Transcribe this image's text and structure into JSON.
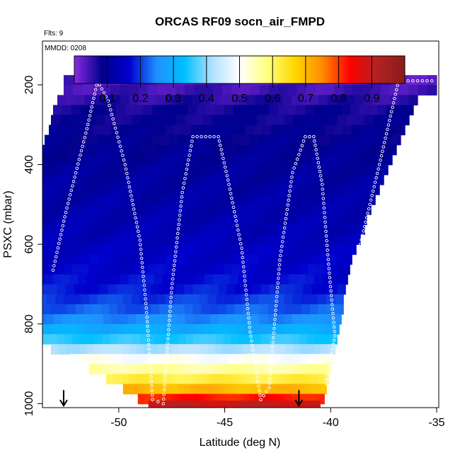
{
  "chart_data": {
    "type": "heatmap",
    "title": "ORCAS RF09 socn_air_FMPD",
    "flts_label": "Flts: 9",
    "mmdd_label": "MMDD: 0208",
    "xlabel": "Latitude (deg N)",
    "ylabel": "PSXC (mbar)",
    "xlim": [
      -53.6,
      -34.9
    ],
    "ylim": [
      1010,
      90
    ],
    "x_ticks": [
      -50,
      -45,
      -40,
      -35
    ],
    "x_tick_labels": [
      "-50",
      "-45",
      "-40",
      "-35"
    ],
    "y_ticks": [
      200,
      400,
      600,
      800,
      1000
    ],
    "y_tick_labels": [
      "200",
      "400",
      "600",
      "800",
      "1000"
    ],
    "colorbar": {
      "range": [
        0,
        1
      ],
      "ticks": [
        0.1,
        0.2,
        0.3,
        0.4,
        0.5,
        0.6,
        0.7,
        0.8,
        0.9
      ],
      "tick_labels": [
        "0.1",
        "0.2",
        "0.3",
        "0.4",
        "0.5",
        "0.6",
        "0.7",
        "0.8",
        "0.9"
      ],
      "colors": [
        "#8a2be2",
        "#00008b",
        "#0000cd",
        "#1e90ff",
        "#00bfff",
        "#b0e0ff",
        "#ffffff",
        "#ffff80",
        "#ffd700",
        "#ff8c00",
        "#ff0000",
        "#b22222",
        "#8b1a1a"
      ]
    },
    "bands": [
      {
        "p": 188,
        "lat_min": -52.6,
        "lat_max": -35.0,
        "v": 0.035
      },
      {
        "p": 213,
        "lat_min": -52.6,
        "lat_max": -35.0,
        "v": 0.045
      },
      {
        "p": 238,
        "lat_min": -52.9,
        "lat_max": -35.9,
        "v": 0.06
      },
      {
        "p": 263,
        "lat_min": -53.1,
        "lat_max": -36.1,
        "v": 0.075
      },
      {
        "p": 288,
        "lat_min": -53.2,
        "lat_max": -36.3,
        "v": 0.08
      },
      {
        "p": 313,
        "lat_min": -53.3,
        "lat_max": -36.5,
        "v": 0.085
      },
      {
        "p": 338,
        "lat_min": -53.5,
        "lat_max": -36.7,
        "v": 0.09
      },
      {
        "p": 363,
        "lat_min": -53.6,
        "lat_max": -36.9,
        "v": 0.095
      },
      {
        "p": 388,
        "lat_min": -53.7,
        "lat_max": -37.1,
        "v": 0.1
      },
      {
        "p": 413,
        "lat_min": -53.9,
        "lat_max": -37.3,
        "v": 0.105
      },
      {
        "p": 438,
        "lat_min": -54.0,
        "lat_max": -37.5,
        "v": 0.11
      },
      {
        "p": 463,
        "lat_min": -54.1,
        "lat_max": -37.7,
        "v": 0.115
      },
      {
        "p": 488,
        "lat_min": -54.2,
        "lat_max": -37.9,
        "v": 0.12
      },
      {
        "p": 513,
        "lat_min": -54.3,
        "lat_max": -38.1,
        "v": 0.125
      },
      {
        "p": 538,
        "lat_min": -54.4,
        "lat_max": -38.3,
        "v": 0.13
      },
      {
        "p": 563,
        "lat_min": -54.6,
        "lat_max": -38.4,
        "v": 0.135
      },
      {
        "p": 588,
        "lat_min": -54.7,
        "lat_max": -38.6,
        "v": 0.14
      },
      {
        "p": 613,
        "lat_min": -54.8,
        "lat_max": -38.8,
        "v": 0.15
      },
      {
        "p": 638,
        "lat_min": -54.9,
        "lat_max": -39.0,
        "v": 0.155
      },
      {
        "p": 663,
        "lat_min": -55.0,
        "lat_max": -39.1,
        "v": 0.16
      },
      {
        "p": 688,
        "lat_min": -55.1,
        "lat_max": -39.2,
        "v": 0.17
      },
      {
        "p": 713,
        "lat_min": -55.3,
        "lat_max": -39.3,
        "v": 0.18
      },
      {
        "p": 738,
        "lat_min": -55.4,
        "lat_max": -39.4,
        "v": 0.2
      },
      {
        "p": 763,
        "lat_min": -55.2,
        "lat_max": -39.4,
        "v": 0.22
      },
      {
        "p": 788,
        "lat_min": -55.0,
        "lat_max": -39.5,
        "v": 0.25
      },
      {
        "p": 813,
        "lat_min": -54.6,
        "lat_max": -39.6,
        "v": 0.3
      },
      {
        "p": 838,
        "lat_min": -54.0,
        "lat_max": -39.7,
        "v": 0.35
      },
      {
        "p": 863,
        "lat_min": -53.2,
        "lat_max": -39.8,
        "v": 0.42
      },
      {
        "p": 888,
        "lat_min": -52.3,
        "lat_max": -39.9,
        "v": 0.5
      },
      {
        "p": 913,
        "lat_min": -51.4,
        "lat_max": -40.0,
        "v": 0.56
      },
      {
        "p": 938,
        "lat_min": -50.6,
        "lat_max": -40.1,
        "v": 0.62
      },
      {
        "p": 963,
        "lat_min": -49.8,
        "lat_max": -40.2,
        "v": 0.7
      },
      {
        "p": 988,
        "lat_min": -49.1,
        "lat_max": -40.3,
        "v": 0.82
      },
      {
        "p": 1005,
        "lat_min": -48.6,
        "lat_max": -40.5,
        "v": 0.9
      }
    ],
    "flight_track": [
      [
        -53.1,
        665
      ],
      [
        -52.5,
        520
      ],
      [
        -51.5,
        310
      ],
      [
        -51.0,
        190
      ],
      [
        -50.5,
        240
      ],
      [
        -49.7,
        400
      ],
      [
        -49.0,
        590
      ],
      [
        -48.7,
        760
      ],
      [
        -48.4,
        990
      ],
      [
        -47.9,
        1000
      ],
      [
        -47.5,
        710
      ],
      [
        -47.0,
        470
      ],
      [
        -46.5,
        330
      ],
      [
        -45.3,
        330
      ],
      [
        -44.8,
        450
      ],
      [
        -44.2,
        610
      ],
      [
        -43.8,
        820
      ],
      [
        -43.3,
        990
      ],
      [
        -42.9,
        960
      ],
      [
        -42.4,
        640
      ],
      [
        -41.8,
        420
      ],
      [
        -41.2,
        330
      ],
      [
        -40.8,
        330
      ],
      [
        -40.4,
        450
      ],
      [
        -40.1,
        650
      ],
      [
        -39.8,
        830
      ],
      [
        -40.2,
        950
      ],
      [
        -39.6,
        860
      ],
      [
        -38.6,
        600
      ],
      [
        -37.7,
        400
      ],
      [
        -36.8,
        190
      ],
      [
        -35.0,
        190
      ]
    ],
    "markers": [
      {
        "lat": -52.6,
        "p": 1005
      },
      {
        "lat": -41.5,
        "p": 1005
      }
    ]
  }
}
